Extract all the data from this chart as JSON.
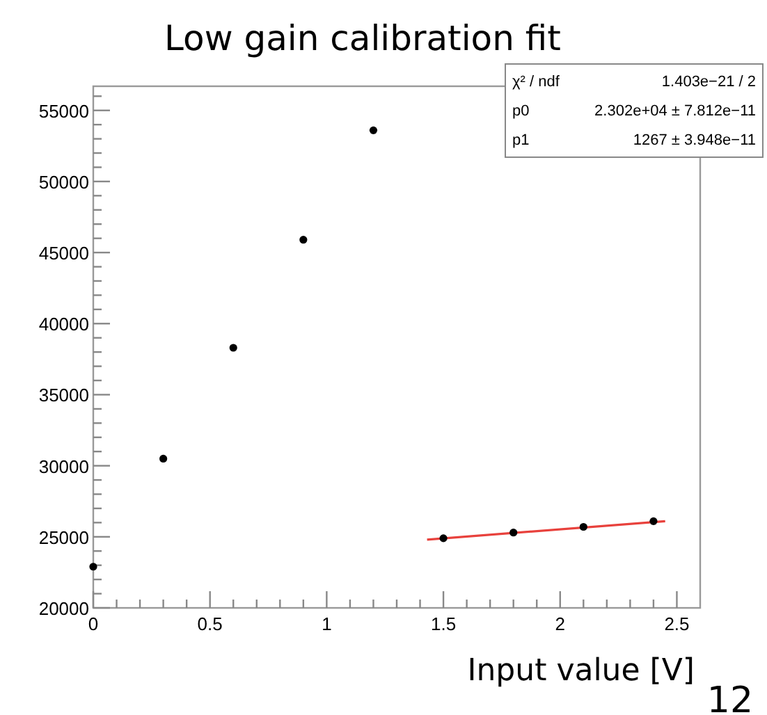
{
  "chart_data": {
    "type": "scatter",
    "title": "Low gain calibration fit",
    "xlabel": "Input value [V]",
    "x": [
      0,
      0.3,
      0.6,
      0.9,
      1.2,
      1.5,
      1.8,
      2.1,
      2.4
    ],
    "series": [
      {
        "color": "#000000",
        "values": [
          22900,
          30500,
          38300,
          45900,
          53600,
          24900,
          25300,
          25700,
          26100
        ]
      },
      {
        "type": "line",
        "color": "#e8413c",
        "marker": "none",
        "x": [
          1.43,
          2.45
        ],
        "values": [
          24800,
          26100
        ]
      }
    ],
    "marker": "circle",
    "xlim": [
      0,
      2.6
    ],
    "ylim": [
      20000,
      56700
    ],
    "xticks": [
      0,
      {
        "value": 0.1,
        "label": null
      },
      {
        "value": 0.2,
        "label": null
      },
      {
        "value": 0.3,
        "label": null
      },
      {
        "value": 0.4,
        "label": null
      },
      0.5,
      {
        "value": 0.6,
        "label": null
      },
      {
        "value": 0.7,
        "label": null
      },
      {
        "value": 0.8,
        "label": null
      },
      {
        "value": 0.9,
        "label": null
      },
      1,
      {
        "value": 1.1,
        "label": null
      },
      {
        "value": 1.2,
        "label": null
      },
      {
        "value": 1.3,
        "label": null
      },
      {
        "value": 1.4,
        "label": null
      },
      1.5,
      {
        "value": 1.6,
        "label": null
      },
      {
        "value": 1.7,
        "label": null
      },
      {
        "value": 1.8,
        "label": null
      },
      {
        "value": 1.9,
        "label": null
      },
      2,
      {
        "value": 2.1,
        "label": null
      },
      {
        "value": 2.2,
        "label": null
      },
      {
        "value": 2.3,
        "label": null
      },
      {
        "value": 2.4,
        "label": null
      },
      2.5
    ],
    "yticks": [
      20000,
      {
        "value": 21000,
        "label": null
      },
      {
        "value": 22000,
        "label": null
      },
      {
        "value": 23000,
        "label": null
      },
      {
        "value": 24000,
        "label": null
      },
      25000,
      {
        "value": 26000,
        "label": null
      },
      {
        "value": 27000,
        "label": null
      },
      {
        "value": 28000,
        "label": null
      },
      {
        "value": 29000,
        "label": null
      },
      30000,
      {
        "value": 31000,
        "label": null
      },
      {
        "value": 32000,
        "label": null
      },
      {
        "value": 33000,
        "label": null
      },
      {
        "value": 34000,
        "label": null
      },
      35000,
      {
        "value": 36000,
        "label": null
      },
      {
        "value": 37000,
        "label": null
      },
      {
        "value": 38000,
        "label": null
      },
      {
        "value": 39000,
        "label": null
      },
      40000,
      {
        "value": 41000,
        "label": null
      },
      {
        "value": 42000,
        "label": null
      },
      {
        "value": 43000,
        "label": null
      },
      {
        "value": 44000,
        "label": null
      },
      45000,
      {
        "value": 46000,
        "label": null
      },
      {
        "value": 47000,
        "label": null
      },
      {
        "value": 48000,
        "label": null
      },
      {
        "value": 49000,
        "label": null
      },
      50000,
      {
        "value": 51000,
        "label": null
      },
      {
        "value": 52000,
        "label": null
      },
      {
        "value": 53000,
        "label": null
      },
      {
        "value": 54000,
        "label": null
      },
      55000,
      {
        "value": 56000,
        "label": null
      }
    ],
    "grid": false,
    "annotations": [
      "χ² / ndf",
      "1.403e−21 / 2",
      "p0",
      "2.302e+04 ± 7.812e−11",
      "p1",
      "1267 ± 3.948e−11",
      "12"
    ]
  }
}
